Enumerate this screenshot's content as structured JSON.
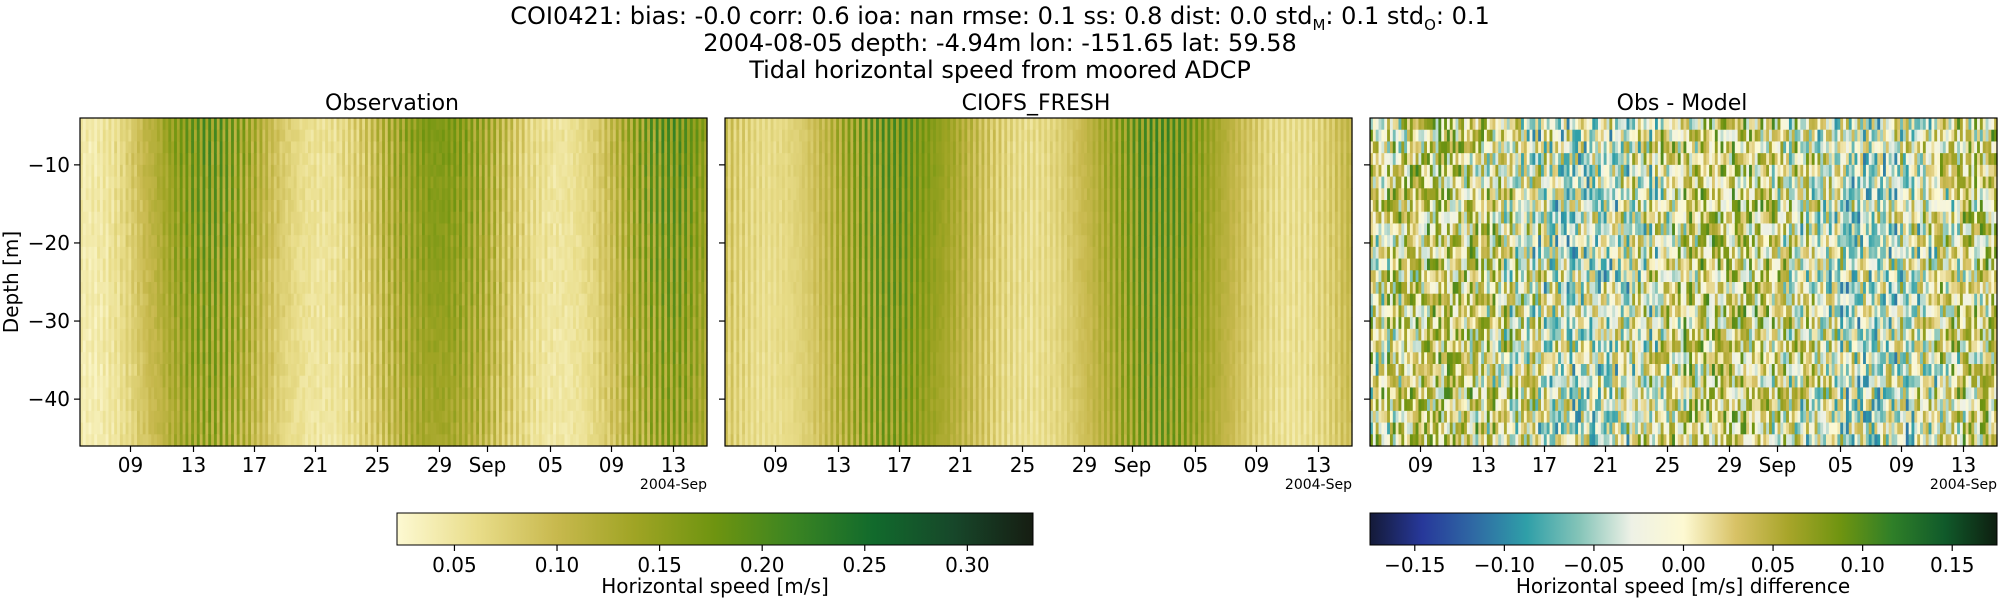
{
  "header": {
    "line1": "COI0421: bias: -0.0  corr: 0.6  ioa: nan  rmse: 0.1  ss: 0.8  dist: 0.0  std",
    "line1_sub_m": "M",
    "line1_mid": ": 0.1  std",
    "line1_sub_o": "O",
    "line1_end": ": 0.1",
    "line2": "2004-08-05 depth: -4.94m lon: -151.65 lat: 59.58",
    "line3": "Tidal horizontal speed from moored ADCP"
  },
  "chart_data": [
    {
      "type": "heatmap",
      "title": "Observation",
      "ylabel": "Depth [m]",
      "x_ticks": [
        "09",
        "13",
        "17",
        "21",
        "25",
        "29",
        "Sep",
        "05",
        "09",
        "13"
      ],
      "x_offset_label": "2004-Sep",
      "y_ticks": [
        -10,
        -20,
        -30,
        -40
      ],
      "ylim": [
        -46,
        -4
      ],
      "colormap": "speed",
      "value_range": [
        0.02,
        0.33
      ]
    },
    {
      "type": "heatmap",
      "title": "CIOFS_FRESH",
      "x_ticks": [
        "09",
        "13",
        "17",
        "21",
        "25",
        "29",
        "Sep",
        "05",
        "09",
        "13"
      ],
      "x_offset_label": "2004-Sep",
      "y_ticks": [
        -10,
        -20,
        -30,
        -40
      ],
      "ylim": [
        -46,
        -4
      ],
      "colormap": "speed",
      "value_range": [
        0.02,
        0.33
      ]
    },
    {
      "type": "heatmap",
      "title": "Obs - Model",
      "x_ticks": [
        "09",
        "13",
        "17",
        "21",
        "25",
        "29",
        "Sep",
        "05",
        "09",
        "13"
      ],
      "x_offset_label": "2004-Sep",
      "y_ticks": [
        -10,
        -20,
        -30,
        -40
      ],
      "ylim": [
        -46,
        -4
      ],
      "colormap": "diff",
      "value_range": [
        -0.175,
        0.175
      ]
    }
  ],
  "colorbars": [
    {
      "label": "Horizontal speed [m/s]",
      "ticks": [
        "0.05",
        "0.10",
        "0.15",
        "0.20",
        "0.25",
        "0.30"
      ],
      "tick_values": [
        0.05,
        0.1,
        0.15,
        0.2,
        0.25,
        0.3
      ],
      "range": [
        0.022,
        0.332
      ],
      "colors": [
        "#fdf9d2",
        "#e9dd8a",
        "#c8b94e",
        "#9fa424",
        "#6e9410",
        "#3a8422",
        "#116a2c",
        "#17472a",
        "#161d12"
      ]
    },
    {
      "label": "Horizontal speed [m/s] difference",
      "ticks": [
        "−0.15",
        "−0.10",
        "−0.05",
        "0.00",
        "0.05",
        "0.10",
        "0.15"
      ],
      "tick_values": [
        -0.15,
        -0.1,
        -0.05,
        0.0,
        0.05,
        0.1,
        0.15
      ],
      "range": [
        -0.175,
        0.175
      ],
      "colors": [
        "#141a38",
        "#27389a",
        "#2f6aa4",
        "#2f9fa8",
        "#84c4b8",
        "#eef1e6",
        "#fdf9d2",
        "#d8c266",
        "#a8a52a",
        "#6f9410",
        "#2f7f28",
        "#105a2a",
        "#0e1e10"
      ]
    }
  ]
}
